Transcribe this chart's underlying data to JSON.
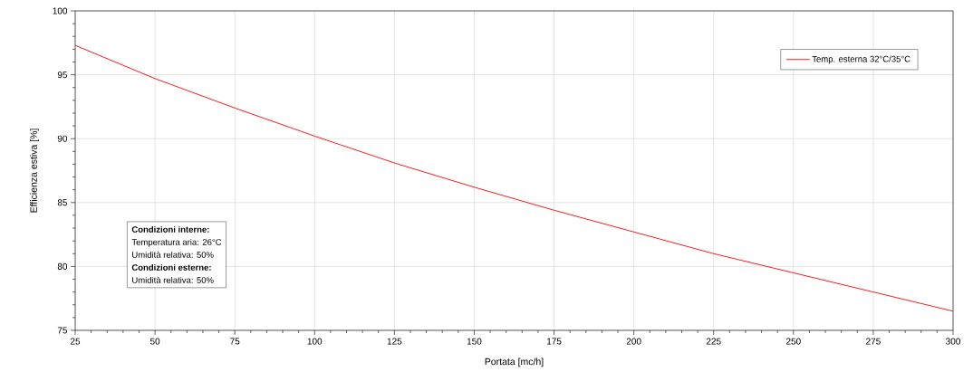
{
  "chart_data": {
    "type": "line",
    "xlabel": "Portata [mc/h]",
    "ylabel": "Efficienza estiva [%]",
    "x": [
      25,
      50,
      75,
      100,
      125,
      150,
      175,
      200,
      225,
      250,
      275,
      300
    ],
    "series": [
      {
        "name": "Temp. esterna 32°C/35°C",
        "color": "#ff0000",
        "values": [
          97.3,
          94.7,
          92.4,
          90.2,
          88.1,
          86.2,
          84.4,
          82.7,
          81.0,
          79.5,
          78.0,
          76.5
        ]
      }
    ],
    "xlim": [
      25,
      300
    ],
    "ylim": [
      75,
      100
    ],
    "xticks": [
      25,
      50,
      75,
      100,
      125,
      150,
      175,
      200,
      225,
      250,
      275,
      300
    ],
    "yticks": [
      75,
      80,
      85,
      90,
      95,
      100
    ],
    "grid": true,
    "legend": "top right",
    "marker": "none",
    "line_style": "solid",
    "annotations": [
      "**Condizioni interne:**",
      "Temperatura aria: 26°C",
      "Umidità relativa: 50%",
      "**Condizioni esterne:**",
      "Umidità relativa: 50%"
    ]
  }
}
